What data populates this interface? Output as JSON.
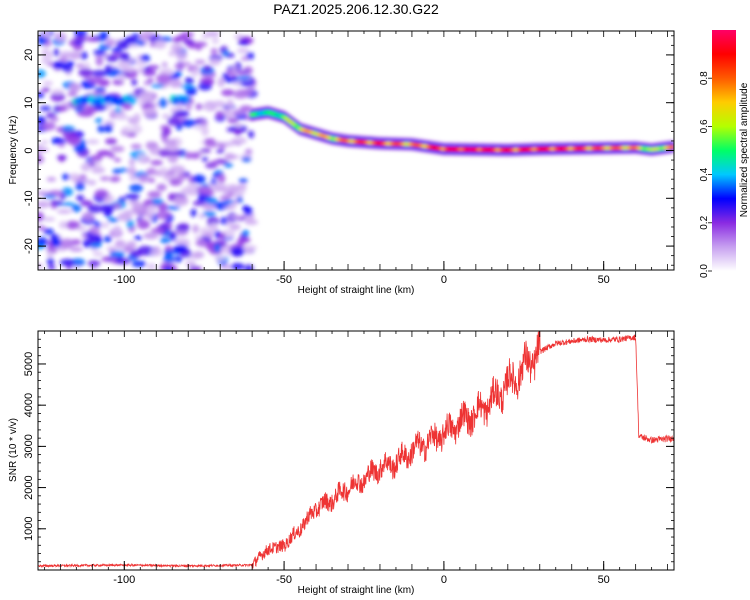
{
  "title": "PAZ1.2025.206.12.30.G22",
  "chart_data": [
    {
      "type": "heatmap",
      "xlabel": "Height of straight line (km)",
      "ylabel": "Frequency (Hz)",
      "xlim": [
        -127,
        72
      ],
      "ylim": [
        -25,
        25
      ],
      "xticks": [
        -100,
        -50,
        0,
        50
      ],
      "yticks": [
        -20,
        -10,
        0,
        10,
        20
      ],
      "colorbar": {
        "label": "Normalized spectral amplitude",
        "range": [
          0,
          1
        ],
        "ticks": [
          "0.0",
          "0.2",
          "0.4",
          "0.6",
          "0.8"
        ],
        "tick_values": [
          0,
          0.2,
          0.4,
          0.6,
          0.8
        ],
        "colors": [
          "#ffffff",
          "#c7a0f0",
          "#8a2be2",
          "#0000ff",
          "#00c8ff",
          "#00ff66",
          "#b4ff00",
          "#ffcc00",
          "#ff5a00",
          "#ff0000",
          "#ff0066"
        ]
      },
      "ridge": {
        "x": [
          -60,
          -55,
          -50,
          -45,
          -40,
          -35,
          -30,
          -20,
          -10,
          0,
          10,
          20,
          30,
          40,
          50,
          60,
          65,
          72
        ],
        "freq_hz": [
          7.5,
          8,
          7,
          4.5,
          3.5,
          2.5,
          2,
          1.5,
          1.3,
          0.3,
          0.2,
          0.1,
          0.3,
          0.4,
          0.5,
          0.6,
          0.2,
          0.8
        ],
        "amplitude": [
          0.55,
          0.5,
          0.6,
          0.7,
          0.8,
          0.7,
          0.85,
          0.9,
          0.8,
          0.95,
          1.0,
          0.9,
          0.95,
          0.9,
          0.85,
          0.8,
          0.6,
          0.8
        ]
      },
      "noise_region": {
        "x_from": -127,
        "x_to": -60,
        "freq_from": -25,
        "freq_to": 25
      },
      "patch": {
        "x_from": -115,
        "x_to": -80,
        "freq_hz": 10.5
      }
    },
    {
      "type": "line",
      "xlabel": "Height of straight line (km)",
      "ylabel": "SNR (10 * v/v)",
      "xlim": [
        -127,
        72
      ],
      "ylim": [
        0,
        5800
      ],
      "xticks": [
        -100,
        -50,
        0,
        50
      ],
      "yticks": [
        1000,
        2000,
        3000,
        4000,
        5000
      ],
      "color": "#ee3333",
      "trend": {
        "x": [
          -127,
          -100,
          -80,
          -60,
          -58,
          -55,
          -50,
          -45,
          -40,
          -35,
          -30,
          -25,
          -20,
          -15,
          -10,
          -5,
          0,
          5,
          10,
          15,
          20,
          25,
          30,
          35,
          40,
          45,
          50,
          55,
          60,
          61,
          65,
          72
        ],
        "y": [
          100,
          120,
          100,
          120,
          300,
          500,
          600,
          1000,
          1500,
          1700,
          2000,
          2200,
          2500,
          2600,
          2900,
          3100,
          3300,
          3600,
          3800,
          4100,
          4500,
          4900,
          5300,
          5500,
          5550,
          5600,
          5580,
          5600,
          5650,
          3250,
          3150,
          3200
        ]
      }
    }
  ]
}
